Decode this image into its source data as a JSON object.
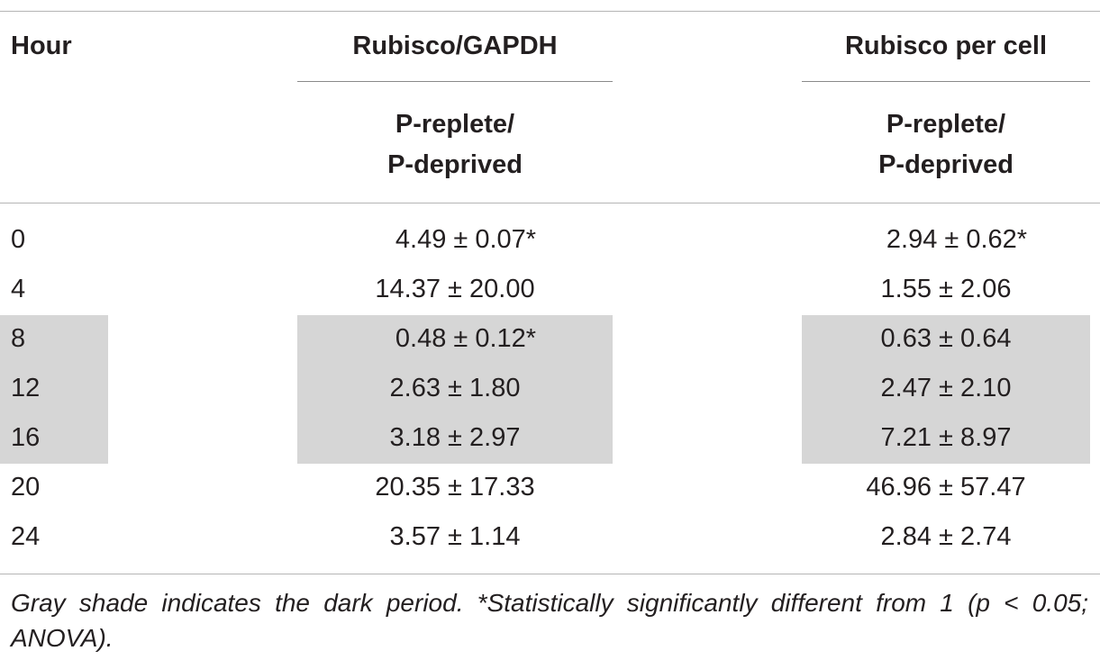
{
  "table": {
    "headers": {
      "hour": "Hour",
      "col1": "Rubisco/GAPDH",
      "col2": "Rubisco per cell"
    },
    "subheaders": {
      "col1_line1": "P-replete/",
      "col1_line2": "P-deprived",
      "col2_line1": "P-replete/",
      "col2_line2": "P-deprived"
    },
    "rows": [
      {
        "hour": "0",
        "rubisco_gapdh": "4.49 ± 0.07*",
        "rubisco_per_cell": "2.94 ± 0.62*",
        "shaded": false
      },
      {
        "hour": "4",
        "rubisco_gapdh": "14.37 ± 20.00",
        "rubisco_per_cell": "1.55 ± 2.06",
        "shaded": false
      },
      {
        "hour": "8",
        "rubisco_gapdh": "0.48 ± 0.12*",
        "rubisco_per_cell": "0.63 ± 0.64",
        "shaded": true
      },
      {
        "hour": "12",
        "rubisco_gapdh": "2.63 ± 1.80",
        "rubisco_per_cell": "2.47 ± 2.10",
        "shaded": true
      },
      {
        "hour": "16",
        "rubisco_gapdh": "3.18 ± 2.97",
        "rubisco_per_cell": "7.21 ± 8.97",
        "shaded": true
      },
      {
        "hour": "20",
        "rubisco_gapdh": "20.35 ± 17.33",
        "rubisco_per_cell": "46.96 ± 57.47",
        "shaded": false
      },
      {
        "hour": "24",
        "rubisco_gapdh": "3.57 ± 1.14",
        "rubisco_per_cell": "2.84 ± 2.74",
        "shaded": false
      }
    ],
    "footnote": "Gray shade indicates the dark period. *Statistically significantly different from 1 (p < 0.05; ANOVA).",
    "colors": {
      "shade": "#d6d6d6",
      "rule": "#b5b5b5",
      "text": "#231f20"
    }
  }
}
